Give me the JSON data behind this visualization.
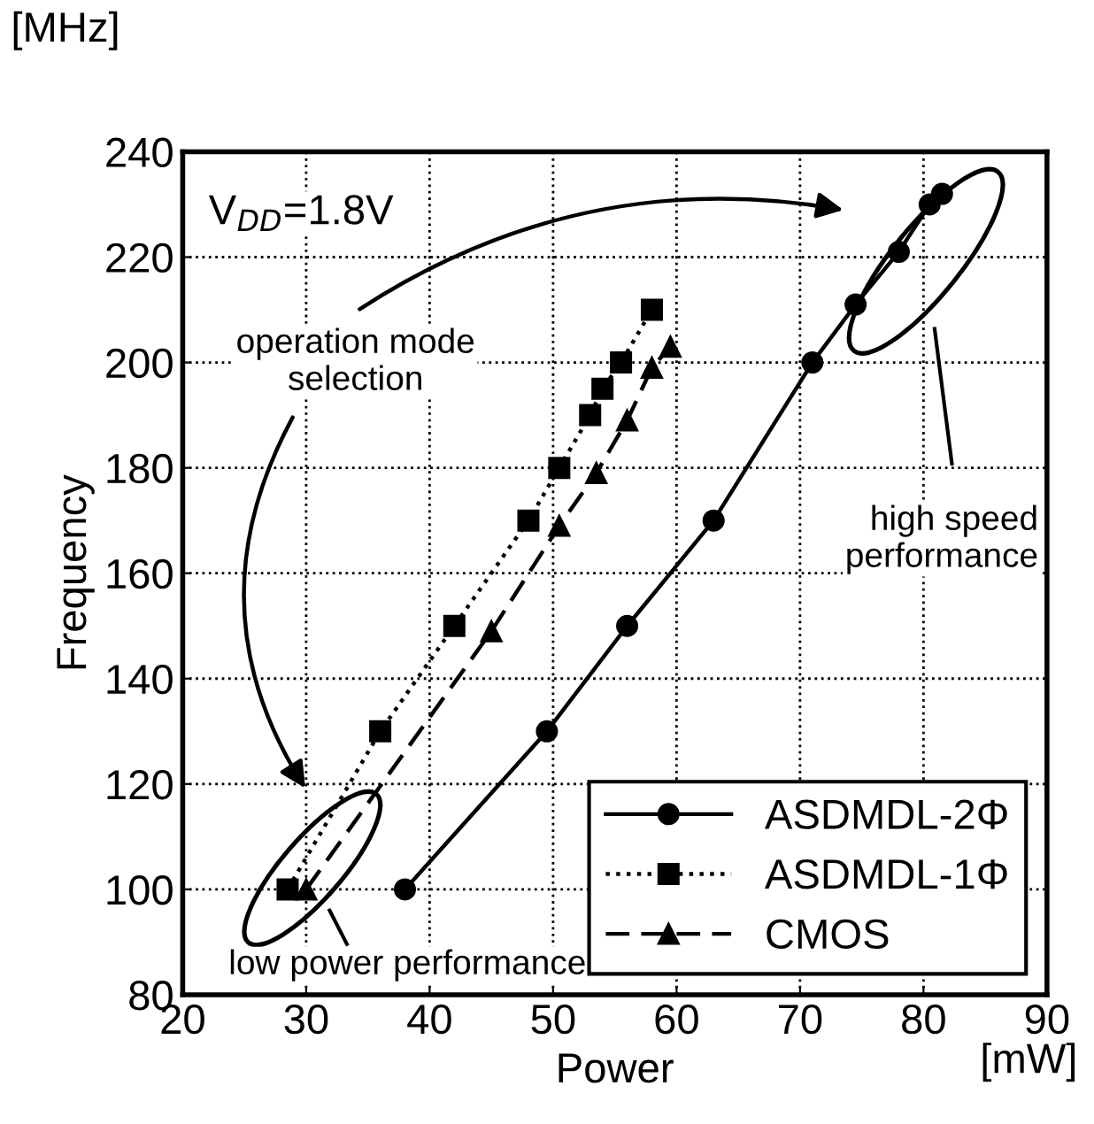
{
  "chart_data": {
    "type": "line",
    "xlabel": "Power",
    "ylabel": "Frequency",
    "xlim": [
      20,
      90
    ],
    "ylim": [
      80,
      240
    ],
    "xticks": [
      20,
      30,
      40,
      50,
      60,
      70,
      80,
      90
    ],
    "yticks": [
      80,
      100,
      120,
      140,
      160,
      180,
      200,
      220,
      240
    ],
    "grid": true,
    "legend": "bottom right",
    "series": [
      {
        "name": "ASDMDL-2Φ",
        "color": "#000000",
        "marker": "circle",
        "line_style": "solid",
        "x": [
          38,
          49.5,
          56,
          63,
          71,
          74.5,
          78,
          80.5,
          81.5
        ],
        "values": [
          100,
          130,
          150,
          170,
          200,
          211,
          221,
          230,
          232
        ]
      },
      {
        "name": "ASDMDL-1Φ",
        "color": "#000000",
        "marker": "square",
        "line_style": "dotted",
        "x": [
          28.5,
          36,
          42,
          48,
          50.5,
          53,
          54,
          55.5,
          58
        ],
        "values": [
          100,
          130,
          150,
          170,
          180,
          190,
          195,
          200,
          210
        ]
      },
      {
        "name": "CMOS",
        "color": "#000000",
        "marker": "triangle",
        "line_style": "dashed",
        "x": [
          30,
          45,
          50.5,
          53.5,
          56,
          58,
          59.5
        ],
        "values": [
          100,
          149,
          169,
          179,
          189,
          199,
          203
        ]
      }
    ],
    "annotations": [
      "[MHz]",
      "[mW]",
      "V$_{DD}$=1.8V",
      "operation mode selection",
      "high speed performance",
      "low power performance"
    ]
  }
}
